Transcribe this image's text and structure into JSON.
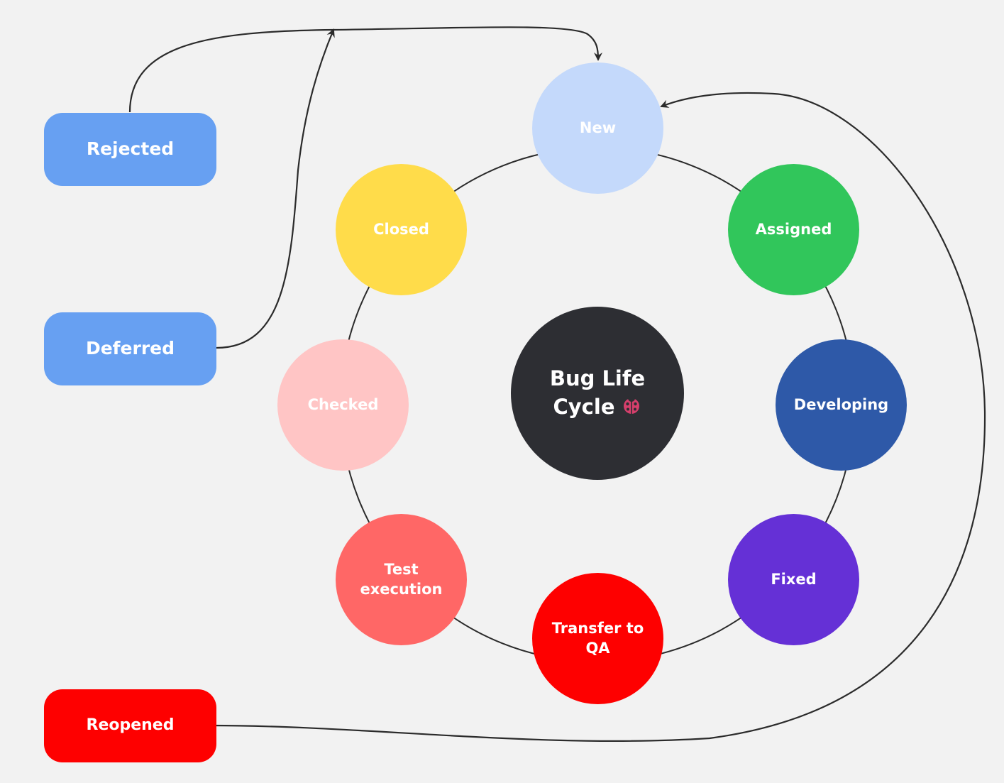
{
  "center": {
    "line1": "Bug Life",
    "line2": "Cycle",
    "icon": "ladybug-icon",
    "color": "#2d2e33"
  },
  "cycle": [
    {
      "key": "new",
      "label": "New",
      "color": "#c4d9fb"
    },
    {
      "key": "assigned",
      "label": "Assigned",
      "color": "#31c65b"
    },
    {
      "key": "developing",
      "label": "Developing",
      "color": "#2e59a8"
    },
    {
      "key": "fixed",
      "label": "Fixed",
      "color": "#6530d6"
    },
    {
      "key": "transfer",
      "label": "Transfer to QA",
      "color": "#fe0000"
    },
    {
      "key": "test",
      "label": "Test execution",
      "color": "#ff6766"
    },
    {
      "key": "checked",
      "label": "Checked",
      "color": "#ffc5c5"
    },
    {
      "key": "closed",
      "label": "Closed",
      "color": "#ffdc4a"
    }
  ],
  "side_states": [
    {
      "key": "rejected",
      "label": "Rejected",
      "color": "#67a0f2"
    },
    {
      "key": "deferred",
      "label": "Deferred",
      "color": "#67a0f2"
    },
    {
      "key": "reopened",
      "label": "Reopened",
      "color": "#fe0000"
    }
  ],
  "colors": {
    "background": "#f2f2f2",
    "connector": "#2b2b2b"
  }
}
